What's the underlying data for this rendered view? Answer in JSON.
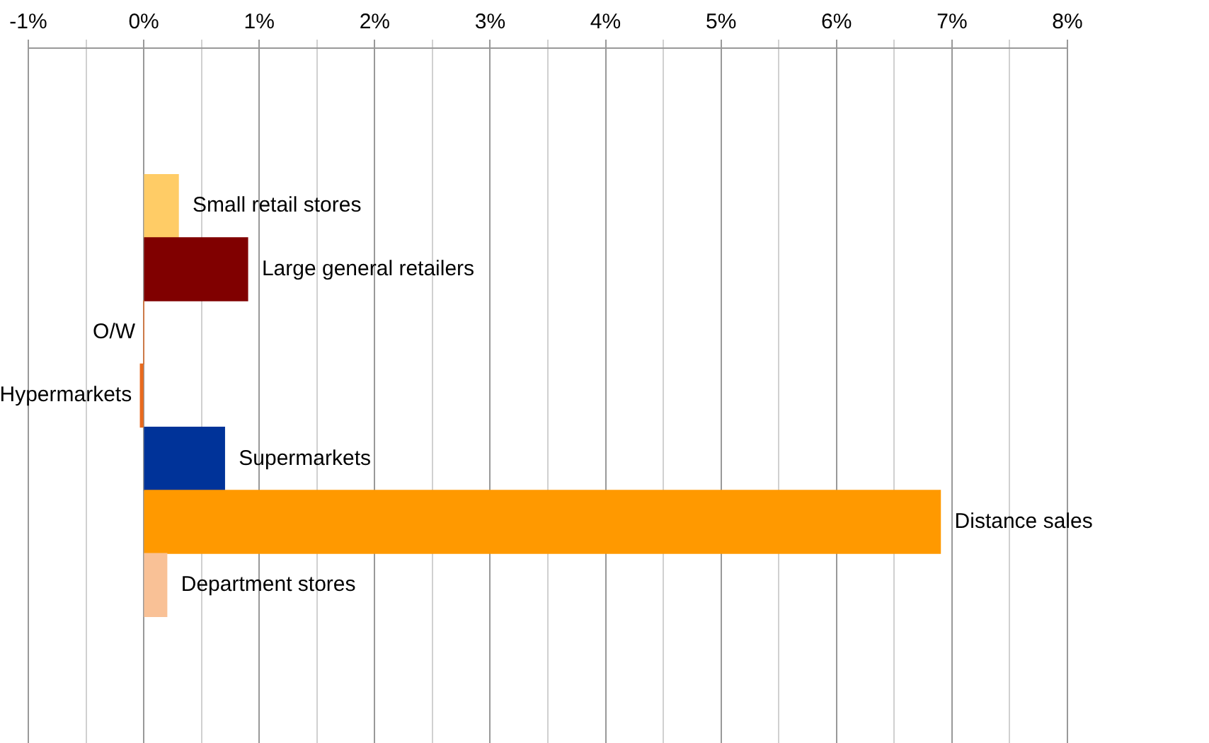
{
  "chart_data": {
    "type": "bar",
    "orientation": "horizontal",
    "categories": [
      null,
      null,
      "Small retail stores",
      "Large general retailers",
      "O/W",
      "Hypermarkets",
      "Supermarkets",
      "Distance sales",
      "Department stores",
      null,
      null
    ],
    "values": [
      null,
      null,
      0.3,
      0.9,
      0,
      -0.03,
      0.7,
      6.9,
      0.2,
      null,
      null
    ],
    "colors": [
      "#ffcc66",
      "#ffcc66",
      "#ffcc66",
      "#800000",
      "#e86a1e",
      "#e86a1e",
      "#003399",
      "#ff9900",
      "#f9c196",
      "#f9c196",
      "#f9c196"
    ],
    "xlim": [
      -1,
      8
    ],
    "xticks": [
      {
        "value": -1,
        "label": "-1%"
      },
      {
        "value": -0.5,
        "label": null
      },
      {
        "value": 0,
        "label": "0%"
      },
      {
        "value": 0.5,
        "label": null
      },
      {
        "value": 1,
        "label": "1%"
      },
      {
        "value": 1.5,
        "label": null
      },
      {
        "value": 2,
        "label": "2%"
      },
      {
        "value": 2.5,
        "label": null
      },
      {
        "value": 3,
        "label": "3%"
      },
      {
        "value": 3.5,
        "label": null
      },
      {
        "value": 4,
        "label": "4%"
      },
      {
        "value": 4.5,
        "label": null
      },
      {
        "value": 5,
        "label": "5%"
      },
      {
        "value": 5.5,
        "label": null
      },
      {
        "value": 6,
        "label": "6%"
      },
      {
        "value": 6.5,
        "label": null
      },
      {
        "value": 7,
        "label": "7%"
      },
      {
        "value": 7.5,
        "label": null
      },
      {
        "value": 8,
        "label": "8%"
      }
    ],
    "grid": "x",
    "tick_labels": "x",
    "legend": false
  }
}
